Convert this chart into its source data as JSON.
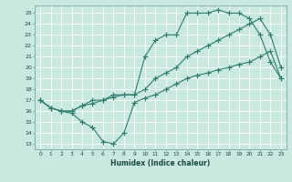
{
  "title": "",
  "xlabel": "Humidex (Indice chaleur)",
  "ylabel": "",
  "background_color": "#c8e8e0",
  "grid_color": "#ffffff",
  "line_color": "#2e7d6e",
  "xlim": [
    -0.5,
    23.5
  ],
  "ylim": [
    12.5,
    25.7
  ],
  "yticks": [
    13,
    14,
    15,
    16,
    17,
    18,
    19,
    20,
    21,
    22,
    23,
    24,
    25
  ],
  "xticks": [
    0,
    1,
    2,
    3,
    4,
    5,
    6,
    7,
    8,
    9,
    10,
    11,
    12,
    13,
    14,
    15,
    16,
    17,
    18,
    19,
    20,
    21,
    22,
    23
  ],
  "line1_x": [
    0,
    1,
    2,
    3,
    4,
    5,
    6,
    7,
    8,
    9,
    10,
    11,
    12,
    13,
    14,
    15,
    16,
    17,
    18,
    19,
    20,
    21,
    22,
    23
  ],
  "line1_y": [
    17.0,
    16.3,
    16.0,
    15.8,
    15.0,
    14.5,
    13.2,
    13.0,
    14.0,
    16.8,
    17.2,
    17.5,
    18.0,
    18.5,
    19.0,
    19.3,
    19.5,
    19.8,
    20.0,
    20.3,
    20.5,
    21.0,
    21.5,
    19.0
  ],
  "line2_x": [
    0,
    1,
    2,
    3,
    4,
    5,
    6,
    7,
    8,
    9,
    10,
    11,
    12,
    13,
    14,
    15,
    16,
    17,
    18,
    19,
    20,
    21,
    22,
    23
  ],
  "line2_y": [
    17.0,
    16.3,
    16.0,
    16.0,
    16.5,
    16.7,
    17.0,
    17.3,
    17.5,
    17.5,
    18.0,
    19.0,
    19.5,
    20.0,
    21.0,
    21.5,
    22.0,
    22.5,
    23.0,
    23.5,
    24.0,
    24.5,
    23.0,
    20.0
  ],
  "line3_x": [
    0,
    1,
    2,
    3,
    4,
    5,
    6,
    7,
    8,
    9,
    10,
    11,
    12,
    13,
    14,
    15,
    16,
    17,
    18,
    19,
    20,
    21,
    22,
    23
  ],
  "line3_y": [
    17.0,
    16.3,
    16.0,
    16.0,
    16.5,
    17.0,
    17.0,
    17.5,
    17.5,
    17.5,
    21.0,
    22.5,
    23.0,
    23.0,
    25.0,
    25.0,
    25.0,
    25.3,
    25.0,
    25.0,
    24.5,
    23.0,
    20.5,
    19.0
  ]
}
